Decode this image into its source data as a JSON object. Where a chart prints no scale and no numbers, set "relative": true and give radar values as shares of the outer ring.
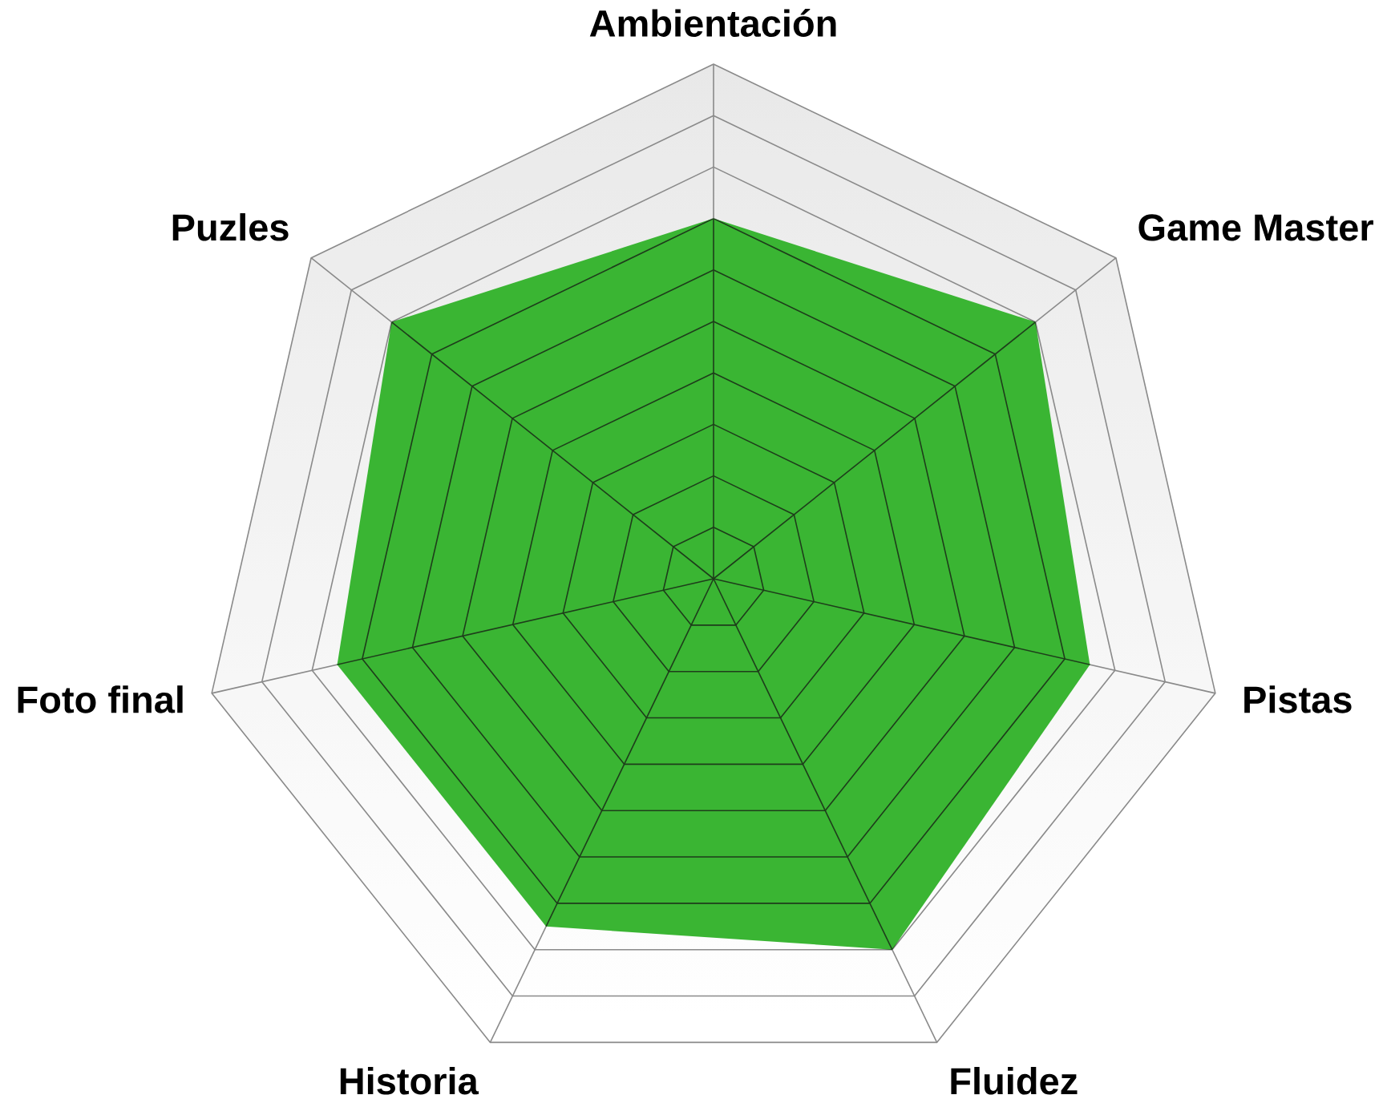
{
  "chart_data": {
    "type": "radar",
    "categories": [
      "Ambientación",
      "Game Master",
      "Pistas",
      "Fluidez",
      "Historia",
      "Foto final",
      "Puzles"
    ],
    "relative": true,
    "grid": true,
    "series": [
      {
        "color": "#3ab533",
        "values": [
          0.7,
          0.8,
          0.75,
          0.8,
          0.75,
          0.75,
          0.8
        ]
      }
    ]
  }
}
